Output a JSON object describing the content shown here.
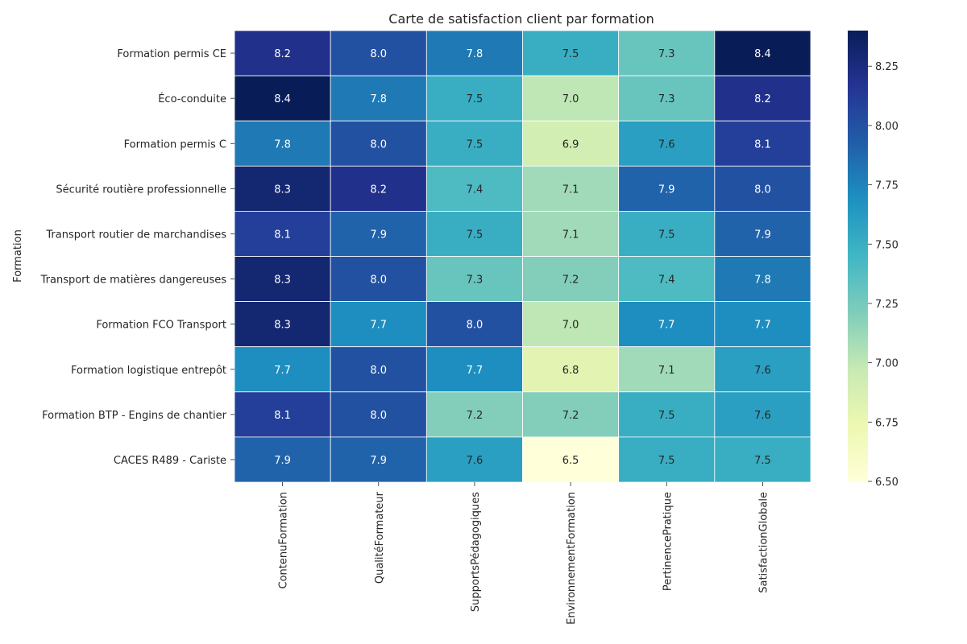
{
  "chart_data": {
    "type": "heatmap",
    "title": "Carte de satisfaction client par formation",
    "xlabel": "",
    "ylabel": "Formation",
    "rows": [
      "Formation permis CE",
      "Éco-conduite",
      "Formation permis C",
      "Sécurité routière professionnelle",
      "Transport routier de marchandises",
      "Transport de matières dangereuses",
      "Formation FCO Transport",
      "Formation logistique entrepôt",
      "Formation BTP - Engins de chantier",
      "CACES R489 - Cariste"
    ],
    "columns": [
      "ContenuFormation",
      "QualitéFormateur",
      "SupportsPédagogiques",
      "EnvironnementFormation",
      "PertinencePratique",
      "SatisfactionGlobale"
    ],
    "values": [
      [
        8.2,
        8.0,
        7.8,
        7.5,
        7.3,
        8.4
      ],
      [
        8.4,
        7.8,
        7.5,
        7.0,
        7.3,
        8.2
      ],
      [
        7.8,
        8.0,
        7.5,
        6.9,
        7.6,
        8.1
      ],
      [
        8.3,
        8.2,
        7.4,
        7.1,
        7.9,
        8.0
      ],
      [
        8.1,
        7.9,
        7.5,
        7.1,
        7.5,
        7.9
      ],
      [
        8.3,
        8.0,
        7.3,
        7.2,
        7.4,
        7.8
      ],
      [
        8.3,
        7.7,
        8.0,
        7.0,
        7.7,
        7.7
      ],
      [
        7.7,
        8.0,
        7.7,
        6.8,
        7.1,
        7.6
      ],
      [
        8.1,
        8.0,
        7.2,
        7.2,
        7.5,
        7.6
      ],
      [
        7.9,
        7.9,
        7.6,
        6.5,
        7.5,
        7.5
      ]
    ],
    "value_format": "0.0",
    "colormap": "YlGnBu",
    "vmin": 6.5,
    "vmax": 8.4,
    "colorbar_ticks": [
      "6.50",
      "6.75",
      "7.00",
      "7.25",
      "7.50",
      "7.75",
      "8.00",
      "8.25"
    ],
    "colorbar_tick_values": [
      6.5,
      6.75,
      7.0,
      7.25,
      7.5,
      7.75,
      8.0,
      8.25
    ],
    "colorbar_position": "right"
  }
}
